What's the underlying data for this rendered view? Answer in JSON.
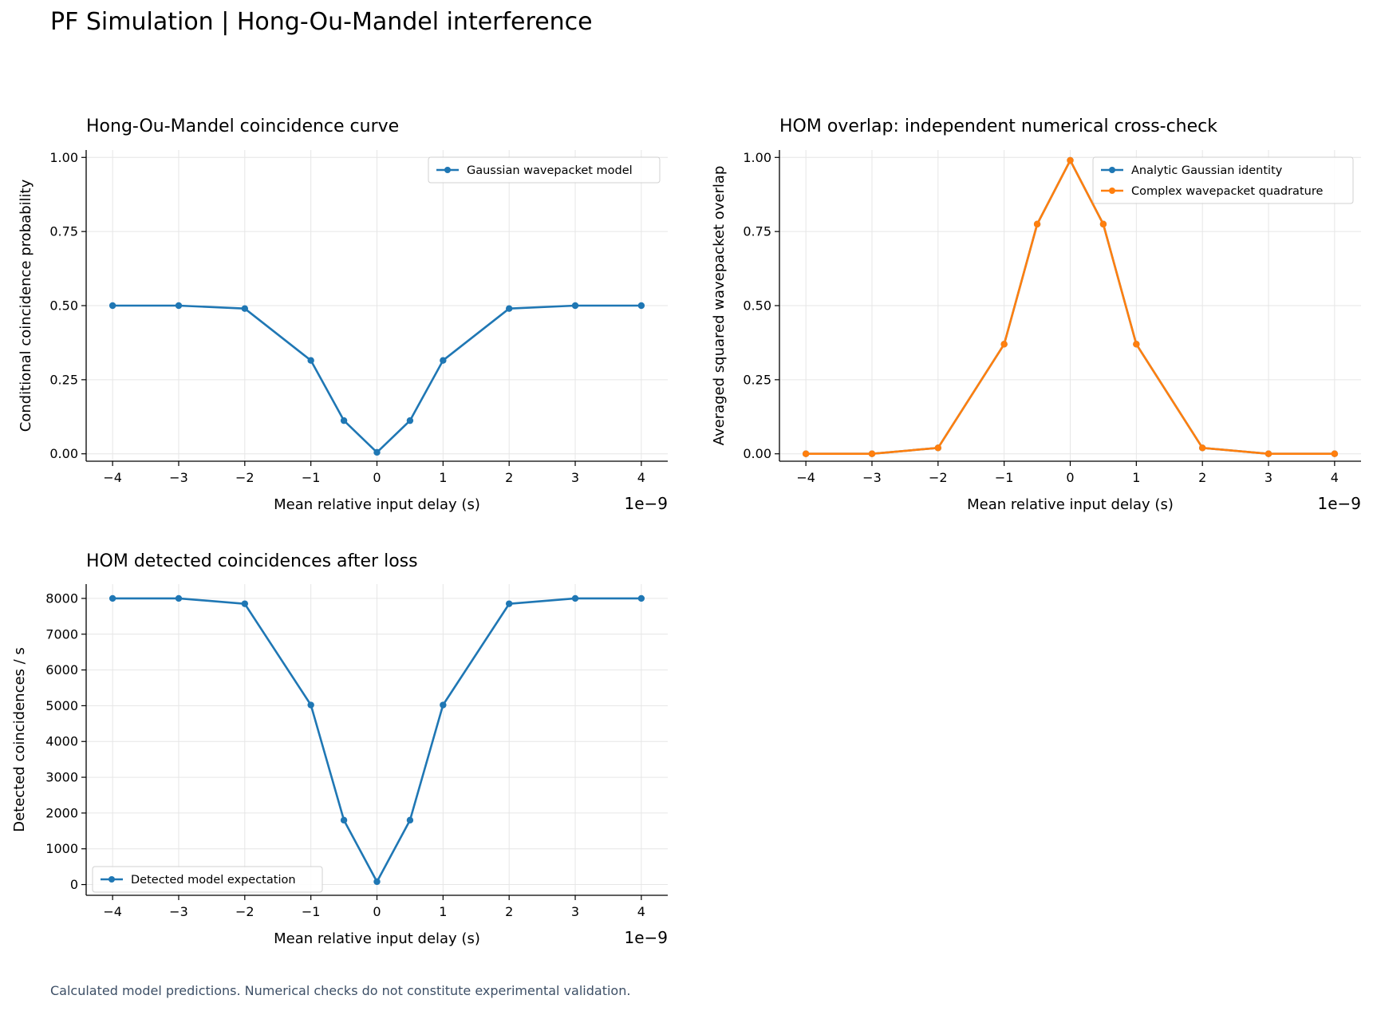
{
  "page": {
    "title": "PF Simulation | Hong-Ou-Mandel interference",
    "footnote": "Calculated model predictions. Numerical checks do not constitute experimental validation."
  },
  "colors": {
    "blue": "#1f77b4",
    "orange": "#ff7f0e",
    "grid": "#e6e6e6",
    "footnote": "#3d4f66"
  },
  "chart_data": [
    {
      "type": "line",
      "title": "Hong-Ou-Mandel coincidence curve",
      "xlabel": "Mean relative input delay (s)",
      "ylabel": "Conditional coincidence probability",
      "x_offset_label": "1e−9",
      "xlim": [
        -4.4e-09,
        4.4e-09
      ],
      "ylim": [
        -0.025,
        1.025
      ],
      "xticks": [
        -4e-09,
        -3e-09,
        -2e-09,
        -1e-09,
        0,
        1e-09,
        2e-09,
        3e-09,
        4e-09
      ],
      "xtick_labels": [
        "−4",
        "−3",
        "−2",
        "−1",
        "0",
        "1",
        "2",
        "3",
        "4"
      ],
      "yticks": [
        0,
        0.25,
        0.5,
        0.75,
        1.0
      ],
      "ytick_labels": [
        "0.00",
        "0.25",
        "0.50",
        "0.75",
        "1.00"
      ],
      "grid": true,
      "legend_loc": "upper-right",
      "x": [
        -4e-09,
        -3e-09,
        -2e-09,
        -1e-09,
        -5e-10,
        0,
        5e-10,
        1e-09,
        2e-09,
        3e-09,
        4e-09
      ],
      "series": [
        {
          "name": "Gaussian wavepacket model",
          "color": "#1f77b4",
          "values": [
            0.5,
            0.5,
            0.49,
            0.315,
            0.112,
            0.005,
            0.112,
            0.315,
            0.49,
            0.5,
            0.5
          ]
        }
      ]
    },
    {
      "type": "line",
      "title": "HOM overlap: independent numerical cross-check",
      "xlabel": "Mean relative input delay (s)",
      "ylabel": "Averaged squared wavepacket overlap",
      "x_offset_label": "1e−9",
      "xlim": [
        -4.4e-09,
        4.4e-09
      ],
      "ylim": [
        -0.025,
        1.025
      ],
      "xticks": [
        -4e-09,
        -3e-09,
        -2e-09,
        -1e-09,
        0,
        1e-09,
        2e-09,
        3e-09,
        4e-09
      ],
      "xtick_labels": [
        "−4",
        "−3",
        "−2",
        "−1",
        "0",
        "1",
        "2",
        "3",
        "4"
      ],
      "yticks": [
        0,
        0.25,
        0.5,
        0.75,
        1.0
      ],
      "ytick_labels": [
        "0.00",
        "0.25",
        "0.50",
        "0.75",
        "1.00"
      ],
      "grid": true,
      "legend_loc": "upper-right",
      "x": [
        -4e-09,
        -3e-09,
        -2e-09,
        -1e-09,
        -5e-10,
        0,
        5e-10,
        1e-09,
        2e-09,
        3e-09,
        4e-09
      ],
      "series": [
        {
          "name": "Analytic Gaussian identity",
          "color": "#1f77b4",
          "values": [
            0.0,
            0.0,
            0.02,
            0.37,
            0.775,
            0.99,
            0.775,
            0.37,
            0.02,
            0.0,
            0.0
          ]
        },
        {
          "name": "Complex wavepacket quadrature",
          "color": "#ff7f0e",
          "values": [
            0.0,
            0.0,
            0.02,
            0.37,
            0.775,
            0.99,
            0.775,
            0.37,
            0.02,
            0.0,
            0.0
          ]
        }
      ]
    },
    {
      "type": "line",
      "title": "HOM detected coincidences after loss",
      "xlabel": "Mean relative input delay (s)",
      "ylabel": "Detected coincidences / s",
      "x_offset_label": "1e−9",
      "xlim": [
        -4.4e-09,
        4.4e-09
      ],
      "ylim": [
        -300,
        8400
      ],
      "xticks": [
        -4e-09,
        -3e-09,
        -2e-09,
        -1e-09,
        0,
        1e-09,
        2e-09,
        3e-09,
        4e-09
      ],
      "xtick_labels": [
        "−4",
        "−3",
        "−2",
        "−1",
        "0",
        "1",
        "2",
        "3",
        "4"
      ],
      "yticks": [
        0,
        1000,
        2000,
        3000,
        4000,
        5000,
        6000,
        7000,
        8000
      ],
      "ytick_labels": [
        "0",
        "1000",
        "2000",
        "3000",
        "4000",
        "5000",
        "6000",
        "7000",
        "8000"
      ],
      "grid": true,
      "legend_loc": "lower-left",
      "x": [
        -4e-09,
        -3e-09,
        -2e-09,
        -1e-09,
        -5e-10,
        0,
        5e-10,
        1e-09,
        2e-09,
        3e-09,
        4e-09
      ],
      "series": [
        {
          "name": "Detected model expectation",
          "color": "#1f77b4",
          "values": [
            8000,
            8000,
            7850,
            5020,
            1800,
            80,
            1800,
            5020,
            7850,
            8000,
            8000
          ]
        }
      ]
    }
  ]
}
